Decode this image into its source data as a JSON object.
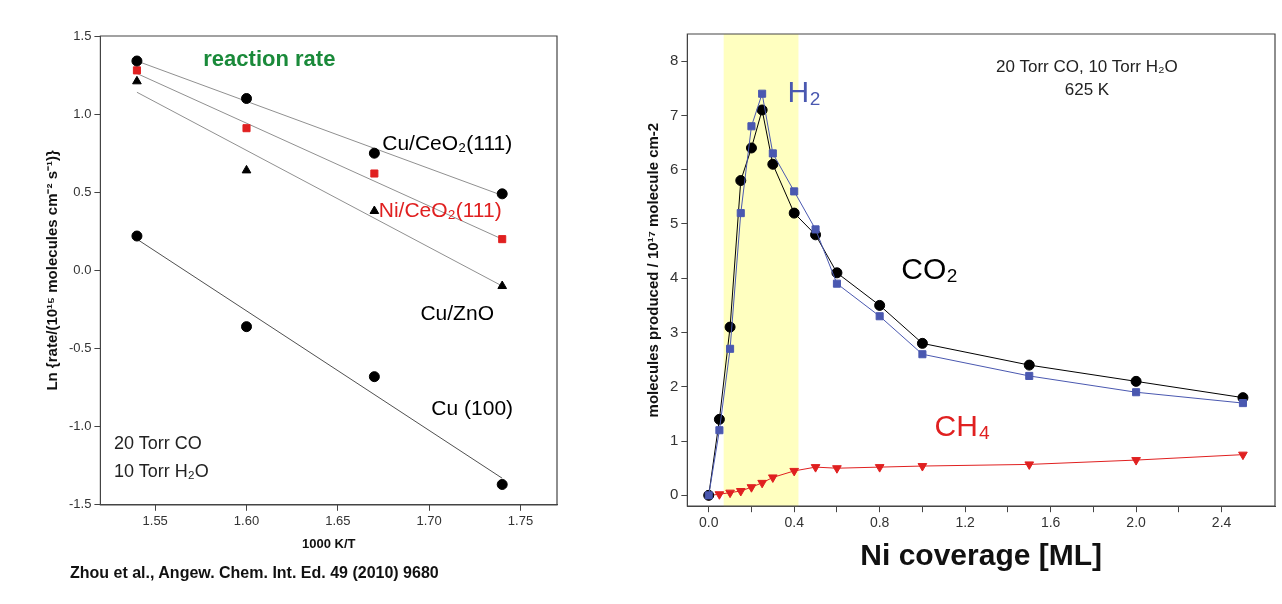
{
  "chart_data": [
    {
      "type": "scatter",
      "ylabel": "Ln {rate/(10¹⁵ molecules cm⁻² s⁻¹)}",
      "xlabel": "1000 K/T",
      "xlim": [
        1.52,
        1.77
      ],
      "ylim": [
        -1.5,
        1.5
      ],
      "xticks": [
        {
          "value": 1.55,
          "label": "1.55"
        },
        {
          "value": 1.6,
          "label": "1.60"
        },
        {
          "value": 1.65,
          "label": "1.65"
        },
        {
          "value": 1.7,
          "label": "1.70"
        },
        {
          "value": 1.75,
          "label": "1.75"
        }
      ],
      "yticks": [
        {
          "value": -1.5,
          "label": "-1.5"
        },
        {
          "value": -1,
          "label": "-1.0"
        },
        {
          "value": -0.5,
          "label": "-0.5"
        },
        {
          "value": 0,
          "label": "0.0"
        },
        {
          "value": 0.5,
          "label": "0.5"
        },
        {
          "value": 1,
          "label": "1.0"
        },
        {
          "value": 1.5,
          "label": "1.5"
        }
      ],
      "grid": false,
      "legend": false,
      "annotations": [
        "reaction rate",
        "20 Torr CO",
        "10 Torr H₂O",
        "Zhou et al., Angew. Chem. Int. Ed.  49 (2010) 9680"
      ],
      "series": [
        {
          "type": "line",
          "x": [
            1.54,
            1.74
          ],
          "values": [
            1.34,
            0.48
          ],
          "color": "#909090",
          "marker": "none"
        },
        {
          "type": "line",
          "x": [
            1.54,
            1.74
          ],
          "values": [
            1.26,
            0.2
          ],
          "color": "#909090",
          "marker": "none"
        },
        {
          "type": "line",
          "x": [
            1.54,
            1.74
          ],
          "values": [
            1.14,
            -0.1
          ],
          "color": "#909090",
          "marker": "none"
        },
        {
          "type": "line",
          "x": [
            1.54,
            1.74
          ],
          "values": [
            0.2,
            -1.33
          ],
          "color": "#505050",
          "marker": "none"
        },
        {
          "name": "Cu/CeO₂(111)",
          "x": [
            1.54,
            1.6,
            1.67,
            1.74
          ],
          "values": [
            1.34,
            1.1,
            0.75,
            0.49
          ],
          "color": "#000000",
          "marker": "circle"
        },
        {
          "name": "Ni/CeO₂(111)",
          "x": [
            1.54,
            1.6,
            1.67,
            1.74
          ],
          "values": [
            1.28,
            0.91,
            0.62,
            0.2
          ],
          "color": "#e02020",
          "marker": "square"
        },
        {
          "name": "Cu/ZnO",
          "x": [
            1.54,
            1.6,
            1.67,
            1.74
          ],
          "values": [
            1.21,
            0.64,
            0.38,
            -0.1
          ],
          "color": "#000000",
          "marker": "triangle"
        },
        {
          "name": "Cu (100)",
          "x": [
            1.54,
            1.6,
            1.67,
            1.74
          ],
          "values": [
            0.22,
            -0.36,
            -0.68,
            -1.37
          ],
          "color": "#000000",
          "marker": "circle"
        }
      ]
    },
    {
      "type": "line",
      "ylabel": "molecules produced / 10¹⁷ molecule cm-2",
      "xlabel": "Ni coverage [ML]",
      "xlim": [
        -0.1,
        2.65
      ],
      "ylim": [
        -0.2,
        8.5
      ],
      "xticks": [
        {
          "value": 0,
          "label": "0.0"
        },
        {
          "value": 0.2,
          "label": null
        },
        {
          "value": 0.4,
          "label": "0.4"
        },
        {
          "value": 0.6,
          "label": null
        },
        {
          "value": 0.8,
          "label": "0.8"
        },
        {
          "value": 1,
          "label": null
        },
        {
          "value": 1.2,
          "label": "1.2"
        },
        {
          "value": 1.4,
          "label": null
        },
        {
          "value": 1.6,
          "label": "1.6"
        },
        {
          "value": 1.8,
          "label": null
        },
        {
          "value": 2,
          "label": "2.0"
        },
        {
          "value": 2.2,
          "label": null
        },
        {
          "value": 2.4,
          "label": "2.4"
        }
      ],
      "yticks": [
        0,
        1,
        2,
        3,
        4,
        5,
        6,
        7,
        8
      ],
      "grid": false,
      "legend": false,
      "annotations": [
        "20 Torr CO, 10 Torr H₂O",
        "625 K"
      ],
      "bands": [
        {
          "axis": "x",
          "from": 0.07,
          "to": 0.42,
          "color": "#ffffc0"
        }
      ],
      "x": [
        0,
        0.05,
        0.1,
        0.15,
        0.2,
        0.25,
        0.3,
        0.4,
        0.5,
        0.6,
        0.8,
        1.0,
        1.5,
        2.0,
        2.5
      ],
      "series": [
        {
          "name": "H₂",
          "values": [
            0,
            1.2,
            2.7,
            5.2,
            6.8,
            7.4,
            6.3,
            5.6,
            4.9,
            3.9,
            3.3,
            2.6,
            2.2,
            1.9,
            1.7
          ],
          "color": "#4a58b0",
          "marker": "square"
        },
        {
          "name": "CO₂",
          "values": [
            0,
            1.4,
            3.1,
            5.8,
            6.4,
            7.1,
            6.1,
            5.2,
            4.8,
            4.1,
            3.5,
            2.8,
            2.4,
            2.1,
            1.8
          ],
          "color": "#000000",
          "marker": "circle"
        },
        {
          "name": "CH₄",
          "values": [
            0,
            0.02,
            0.05,
            0.08,
            0.15,
            0.23,
            0.33,
            0.45,
            0.52,
            0.5,
            0.52,
            0.54,
            0.57,
            0.65,
            0.75
          ],
          "color": "#e02020",
          "marker": "triangle"
        }
      ]
    }
  ]
}
